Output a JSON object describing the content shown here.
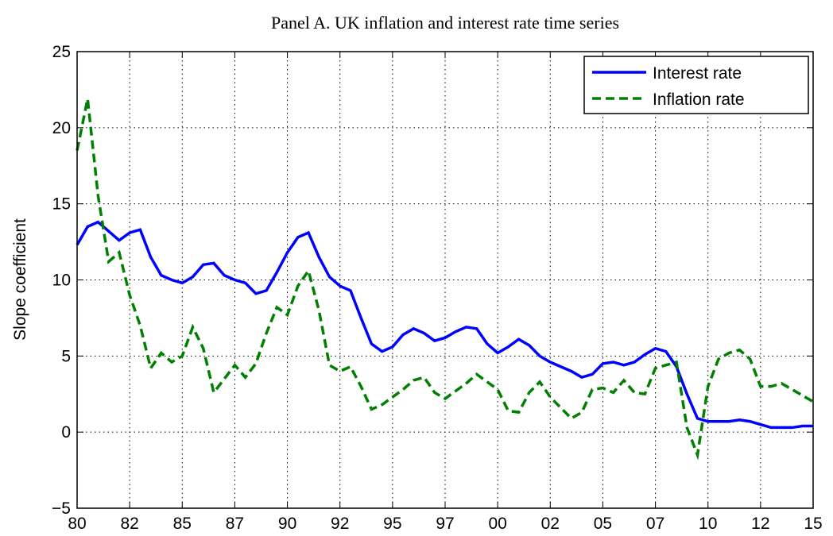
{
  "chart_data": {
    "type": "line",
    "title": "Panel A. UK inflation and interest rate time series",
    "y_label": "Slope coefficient",
    "x": [
      1980,
      1980.5,
      1981,
      1981.5,
      1982,
      1982.5,
      1983,
      1983.5,
      1984,
      1984.5,
      1985,
      1985.5,
      1986,
      1986.5,
      1987,
      1987.5,
      1988,
      1988.5,
      1989,
      1989.5,
      1990,
      1990.5,
      1991,
      1991.5,
      1992,
      1992.5,
      1993,
      1993.5,
      1994,
      1994.5,
      1995,
      1995.5,
      1996,
      1996.5,
      1997,
      1997.5,
      1998,
      1998.5,
      1999,
      1999.5,
      2000,
      2000.5,
      2001,
      2001.5,
      2002,
      2002.5,
      2003,
      2003.5,
      2004,
      2004.5,
      2005,
      2005.5,
      2006,
      2006.5,
      2007,
      2007.5,
      2008,
      2008.5,
      2009,
      2009.5,
      2010,
      2010.5,
      2011,
      2011.5,
      2012,
      2012.5,
      2013,
      2013.5,
      2014,
      2014.5,
      2015
    ],
    "series": [
      {
        "name": "Interest rate",
        "color": "#0000ff",
        "dash": "solid",
        "values": [
          12.3,
          13.5,
          13.8,
          13.2,
          12.6,
          13.1,
          13.3,
          11.5,
          10.3,
          10.0,
          9.8,
          10.2,
          11.0,
          11.1,
          10.3,
          10.0,
          9.8,
          9.1,
          9.3,
          10.5,
          11.8,
          12.8,
          13.1,
          11.5,
          10.2,
          9.6,
          9.3,
          7.5,
          5.8,
          5.3,
          5.6,
          6.4,
          6.8,
          6.5,
          6.0,
          6.2,
          6.6,
          6.9,
          6.8,
          5.8,
          5.2,
          5.6,
          6.1,
          5.7,
          5.0,
          4.6,
          4.3,
          4.0,
          3.6,
          3.8,
          4.5,
          4.6,
          4.4,
          4.6,
          5.1,
          5.5,
          5.3,
          4.3,
          2.5,
          0.9,
          0.7,
          0.7,
          0.7,
          0.8,
          0.7,
          0.5,
          0.3,
          0.3,
          0.3,
          0.4,
          0.4
        ]
      },
      {
        "name": "Inflation rate",
        "color": "#008000",
        "dash": "dashed",
        "values": [
          18.5,
          21.9,
          15.5,
          11.2,
          11.8,
          9.0,
          7.0,
          4.2,
          5.2,
          4.6,
          5.0,
          6.9,
          5.5,
          2.6,
          3.5,
          4.4,
          3.6,
          4.5,
          6.5,
          8.2,
          7.7,
          9.6,
          10.6,
          8.0,
          4.4,
          4.0,
          4.3,
          3.0,
          1.5,
          1.8,
          2.3,
          2.8,
          3.4,
          3.6,
          2.6,
          2.2,
          2.7,
          3.2,
          3.8,
          3.3,
          2.8,
          1.4,
          1.3,
          2.6,
          3.3,
          2.3,
          1.6,
          0.9,
          1.3,
          2.8,
          2.9,
          2.6,
          3.4,
          2.6,
          2.5,
          4.2,
          4.4,
          4.6,
          0.3,
          -1.5,
          3.0,
          4.8,
          5.2,
          5.4,
          4.8,
          3.0,
          3.0,
          3.2,
          2.8,
          2.4,
          2.0
        ]
      }
    ],
    "xlim": [
      1980,
      2015
    ],
    "xticks": [
      {
        "value": 1980,
        "label": "80"
      },
      {
        "value": 1982.5,
        "label": "82"
      },
      {
        "value": 1985,
        "label": "85"
      },
      {
        "value": 1987.5,
        "label": "87"
      },
      {
        "value": 1990,
        "label": "90"
      },
      {
        "value": 1992.5,
        "label": "92"
      },
      {
        "value": 1995,
        "label": "95"
      },
      {
        "value": 1997.5,
        "label": "97"
      },
      {
        "value": 2000,
        "label": "00"
      },
      {
        "value": 2002.5,
        "label": "02"
      },
      {
        "value": 2005,
        "label": "05"
      },
      {
        "value": 2007.5,
        "label": "07"
      },
      {
        "value": 2010,
        "label": "10"
      },
      {
        "value": 2012.5,
        "label": "12"
      },
      {
        "value": 2015,
        "label": "15"
      }
    ],
    "ylim": [
      -5,
      25
    ],
    "yticks": [
      {
        "value": -5,
        "label": "−5"
      },
      0,
      5,
      10,
      15,
      20,
      25
    ],
    "grid": true,
    "legend": "upper right"
  }
}
